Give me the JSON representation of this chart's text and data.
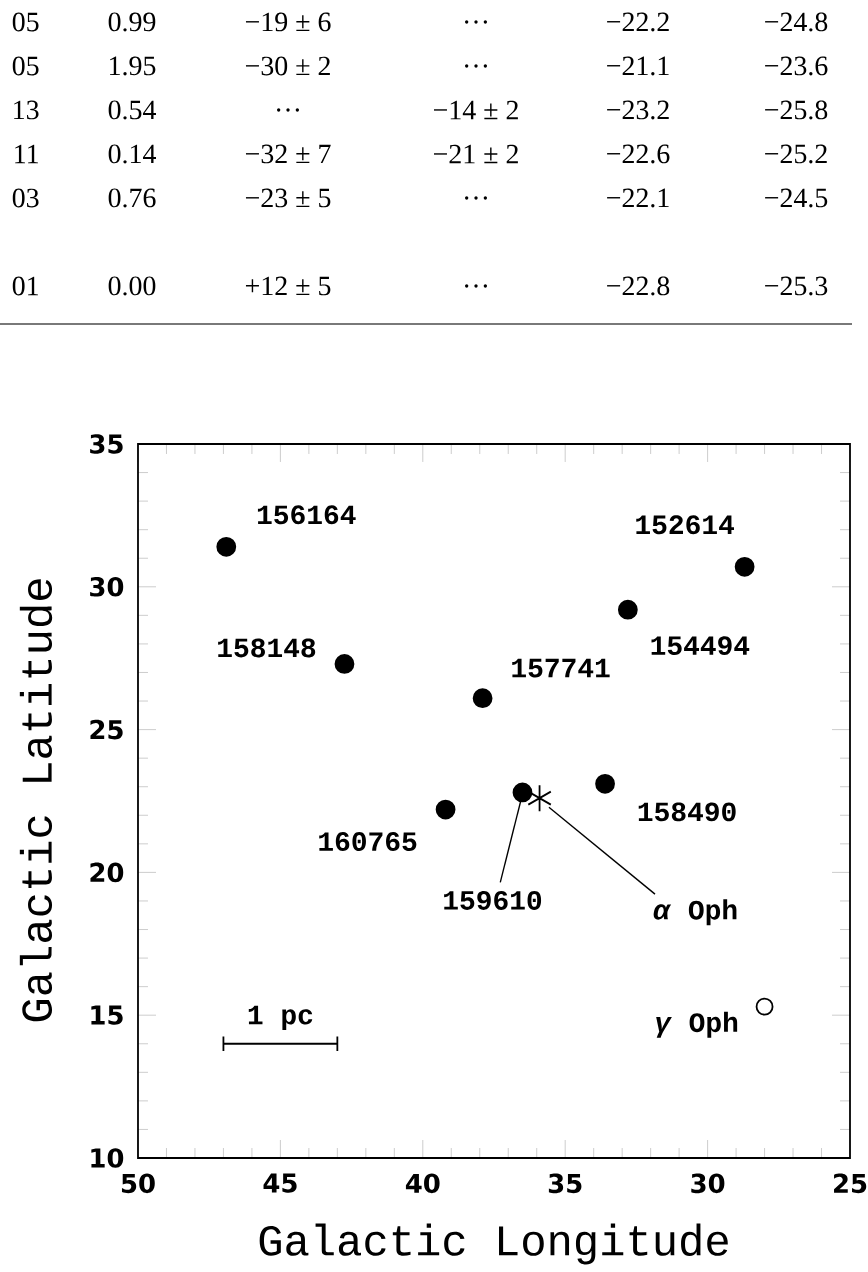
{
  "chart_data": {
    "type": "scatter",
    "xlabel": "Galactic Longitude",
    "ylabel": "Galactic Latitude",
    "xlim": [
      50,
      25
    ],
    "ylim": [
      10,
      35
    ],
    "xticks": [
      50,
      45,
      40,
      35,
      30,
      25
    ],
    "yticks": [
      10,
      15,
      20,
      25,
      30,
      35
    ],
    "grid": false,
    "series": [
      {
        "color": "#000000",
        "marker": "circle",
        "x": [
          46.9,
          42.75,
          37.9,
          32.8,
          28.7,
          33.6,
          36.5,
          39.2
        ],
        "values": [
          31.4,
          27.3,
          26.1,
          29.2,
          30.7,
          23.1,
          22.8,
          22.2
        ]
      },
      {
        "color": "#000000",
        "marker": "cross",
        "x": [
          35.9
        ],
        "values": [
          22.6
        ]
      },
      {
        "color": "#ffffff",
        "marker": "circle",
        "x": [
          28.0
        ],
        "values": [
          15.3
        ]
      }
    ],
    "annotations": [
      "05",
      "0.99",
      "−19 ± 6",
      "…",
      "−22.2",
      "−24.8",
      "05",
      "1.95",
      "−30 ± 2",
      "…",
      "−21.1",
      "−23.6",
      "13",
      "0.54",
      "…",
      "−14 ± 2",
      "−23.2",
      "−25.8",
      "11",
      "0.14",
      "−32 ± 7",
      "−21 ± 2",
      "−22.6",
      "−25.2",
      "03",
      "0.76",
      "−23 ± 5",
      "…",
      "−22.1",
      "−24.5",
      "01",
      "0.00",
      "+12 ± 5",
      "…",
      "−22.8",
      "−25.3",
      "1 pc",
      {
        "text": "156164",
        "x": 46.9,
        "y": 31.4
      },
      {
        "text": "158148",
        "x": 42.75,
        "y": 27.3
      },
      {
        "text": "157741",
        "x": 37.9,
        "y": 26.1
      },
      {
        "text": "154494",
        "x": 32.8,
        "y": 29.2
      },
      {
        "text": "152614",
        "x": 28.7,
        "y": 30.7
      },
      {
        "text": "158490",
        "x": 33.6,
        "y": 23.1
      },
      {
        "text": "159610",
        "x": 36.5,
        "y": 22.8
      },
      {
        "text": "160765",
        "x": 39.2,
        "y": 22.2
      },
      {
        "text": "*α* Oph",
        "x": 35.9,
        "y": 22.6
      },
      {
        "text": "*γ* Oph",
        "x": 28.0,
        "y": 15.3
      }
    ]
  }
}
